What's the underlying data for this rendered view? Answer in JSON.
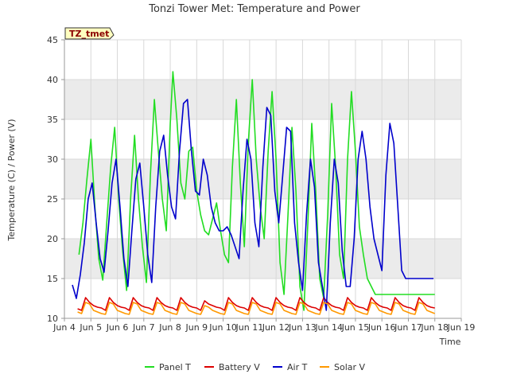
{
  "chart_data": {
    "type": "line",
    "title": "Tonzi Tower Met: Temperature and Power",
    "xlabel": "Time",
    "ylabel": "Temperature (C) / Power (V)",
    "badge": "TZ_tmet",
    "xlim": [
      4,
      19
    ],
    "ylim": [
      10,
      45
    ],
    "x_ticks": [
      4,
      5,
      6,
      7,
      8,
      9,
      10,
      11,
      12,
      13,
      14,
      15,
      16,
      17,
      18,
      19
    ],
    "x_tick_labels": [
      "Jun 4",
      "Jun 5",
      "Jun 6",
      "Jun 7",
      "Jun 8",
      "Jun 9",
      "Jun 10",
      "Jun 11",
      "Jun 12",
      "Jun 13",
      "Jun 14",
      "Jun 15",
      "Jun 16",
      "Jun 17",
      "Jun 18",
      "Jun 19"
    ],
    "y_ticks": [
      10,
      15,
      20,
      25,
      30,
      35,
      40,
      45
    ],
    "y_tick_labels": [
      "10",
      "15",
      "20",
      "25",
      "30",
      "35",
      "40",
      "45"
    ],
    "series": [
      {
        "name": "Panel T",
        "color": "#22dd22",
        "x": [
          4.55,
          4.7,
          4.85,
          5.0,
          5.15,
          5.3,
          5.45,
          5.6,
          5.75,
          5.9,
          6.05,
          6.2,
          6.35,
          6.5,
          6.65,
          6.8,
          6.95,
          7.1,
          7.25,
          7.4,
          7.55,
          7.7,
          7.85,
          8.0,
          8.1,
          8.25,
          8.4,
          8.55,
          8.7,
          8.85,
          9.0,
          9.15,
          9.3,
          9.45,
          9.6,
          9.75,
          9.9,
          10.05,
          10.2,
          10.35,
          10.5,
          10.65,
          10.8,
          10.95,
          11.1,
          11.25,
          11.4,
          11.55,
          11.7,
          11.85,
          12.0,
          12.15,
          12.3,
          12.45,
          12.6,
          12.75,
          12.9,
          13.05,
          13.2,
          13.35,
          13.5,
          13.65,
          13.8,
          13.95,
          14.1,
          14.25,
          14.4,
          14.55,
          14.7,
          14.85,
          15.0,
          15.15,
          15.3,
          15.45,
          15.6,
          15.75,
          15.9,
          16.05,
          16.2,
          16.35,
          16.5,
          16.65,
          16.8,
          16.95,
          17.1,
          17.25,
          17.4,
          17.55,
          17.7,
          17.85,
          18.0
        ],
        "y": [
          18.0,
          22.0,
          27.5,
          32.5,
          24.0,
          17.5,
          14.8,
          22.0,
          29.0,
          34.0,
          25.0,
          18.5,
          13.5,
          25.0,
          33.0,
          25.0,
          19.0,
          14.5,
          28.0,
          37.5,
          31.0,
          25.0,
          21.0,
          34.5,
          41.0,
          35.0,
          27.0,
          25.0,
          31.0,
          31.5,
          26.0,
          23.0,
          21.0,
          20.5,
          22.5,
          24.5,
          21.0,
          18.0,
          17.0,
          29.0,
          37.5,
          27.0,
          19.0,
          32.0,
          40.0,
          30.0,
          24.0,
          20.0,
          31.0,
          38.5,
          30.0,
          17.0,
          13.0,
          23.0,
          34.0,
          26.0,
          14.0,
          11.0,
          22.0,
          34.5,
          26.0,
          15.0,
          12.5,
          23.0,
          37.0,
          29.0,
          18.0,
          15.0,
          30.0,
          38.5,
          31.0,
          21.5,
          18.0,
          15.0,
          14.0,
          13.0,
          13.0,
          13.0,
          13.0,
          13.0,
          13.0,
          13.0,
          13.0,
          13.0,
          13.0,
          13.0,
          13.0,
          13.0,
          13.0,
          13.0,
          13.0
        ]
      },
      {
        "name": "Battery V",
        "color": "#dd0000",
        "x": [
          4.5,
          4.65,
          4.8,
          4.95,
          5.1,
          5.25,
          5.4,
          5.55,
          5.7,
          5.85,
          6.0,
          6.15,
          6.3,
          6.45,
          6.6,
          6.75,
          6.9,
          7.05,
          7.2,
          7.35,
          7.5,
          7.65,
          7.8,
          7.95,
          8.1,
          8.25,
          8.4,
          8.55,
          8.7,
          8.85,
          9.0,
          9.15,
          9.3,
          9.45,
          9.6,
          9.75,
          9.9,
          10.05,
          10.2,
          10.35,
          10.5,
          10.65,
          10.8,
          10.95,
          11.1,
          11.25,
          11.4,
          11.55,
          11.7,
          11.85,
          12.0,
          12.15,
          12.3,
          12.45,
          12.6,
          12.75,
          12.9,
          13.05,
          13.2,
          13.35,
          13.5,
          13.65,
          13.8,
          13.95,
          14.1,
          14.25,
          14.4,
          14.55,
          14.7,
          14.85,
          15.0,
          15.15,
          15.3,
          15.45,
          15.6,
          15.75,
          15.9,
          16.05,
          16.2,
          16.35,
          16.5,
          16.65,
          16.8,
          16.95,
          17.1,
          17.25,
          17.4,
          17.55,
          17.7,
          17.85,
          18.0
        ],
        "y": [
          11.2,
          11.0,
          12.6,
          12.0,
          11.6,
          11.4,
          11.3,
          11.0,
          12.6,
          12.0,
          11.6,
          11.4,
          11.3,
          11.0,
          12.6,
          12.0,
          11.6,
          11.4,
          11.3,
          11.0,
          12.6,
          12.0,
          11.6,
          11.4,
          11.3,
          11.0,
          12.6,
          12.0,
          11.6,
          11.4,
          11.3,
          11.0,
          12.2,
          11.8,
          11.6,
          11.4,
          11.3,
          11.0,
          12.6,
          12.0,
          11.6,
          11.4,
          11.3,
          11.0,
          12.6,
          12.0,
          11.6,
          11.4,
          11.3,
          11.0,
          12.6,
          12.0,
          11.6,
          11.4,
          11.3,
          11.0,
          12.6,
          12.0,
          11.6,
          11.4,
          11.3,
          11.0,
          12.6,
          12.0,
          11.6,
          11.4,
          11.3,
          11.0,
          12.6,
          12.0,
          11.6,
          11.4,
          11.3,
          11.0,
          12.6,
          12.0,
          11.6,
          11.4,
          11.3,
          11.0,
          12.6,
          12.0,
          11.6,
          11.4,
          11.3,
          11.0,
          12.6,
          12.0,
          11.6,
          11.4,
          11.3
        ]
      },
      {
        "name": "Air T",
        "color": "#0000cc",
        "x": [
          4.3,
          4.45,
          4.6,
          4.75,
          4.9,
          5.05,
          5.2,
          5.35,
          5.5,
          5.65,
          5.8,
          5.95,
          6.1,
          6.25,
          6.4,
          6.55,
          6.7,
          6.85,
          7.0,
          7.15,
          7.3,
          7.45,
          7.6,
          7.75,
          7.9,
          8.05,
          8.2,
          8.35,
          8.5,
          8.65,
          8.8,
          8.95,
          9.1,
          9.25,
          9.4,
          9.55,
          9.7,
          9.85,
          10.0,
          10.15,
          10.3,
          10.45,
          10.6,
          10.75,
          10.9,
          11.05,
          11.2,
          11.35,
          11.5,
          11.65,
          11.8,
          11.95,
          12.1,
          12.25,
          12.4,
          12.55,
          12.7,
          12.85,
          13.0,
          13.15,
          13.3,
          13.45,
          13.6,
          13.75,
          13.9,
          14.05,
          14.2,
          14.35,
          14.5,
          14.65,
          14.8,
          14.95,
          15.1,
          15.25,
          15.4,
          15.55,
          15.7,
          15.85,
          16.0,
          16.15,
          16.3,
          16.45,
          16.6,
          16.75,
          16.9,
          17.05,
          17.2,
          17.35,
          17.5,
          17.65,
          17.8,
          17.95
        ],
        "y": [
          14.2,
          12.5,
          15.5,
          19.5,
          25.0,
          27.0,
          22.0,
          17.5,
          15.8,
          21.0,
          27.0,
          30.0,
          24.0,
          17.5,
          14.0,
          21.0,
          27.5,
          29.5,
          24.0,
          18.0,
          14.5,
          24.0,
          31.0,
          33.0,
          28.0,
          24.0,
          22.5,
          31.0,
          37.0,
          37.5,
          31.0,
          26.0,
          25.5,
          30.0,
          28.0,
          24.0,
          22.0,
          21.0,
          21.0,
          21.5,
          20.5,
          19.0,
          17.5,
          26.0,
          32.5,
          30.0,
          22.0,
          19.0,
          29.0,
          36.5,
          35.5,
          26.0,
          22.0,
          28.0,
          34.0,
          33.5,
          22.0,
          17.0,
          13.5,
          23.0,
          30.0,
          26.5,
          17.0,
          14.0,
          11.0,
          22.0,
          30.0,
          27.0,
          18.5,
          14.0,
          14.0,
          20.0,
          30.0,
          33.5,
          30.0,
          24.0,
          20.0,
          18.0,
          16.0,
          28.0,
          34.5,
          32.0,
          24.0,
          16.0,
          15.0,
          15.0,
          15.0,
          15.0,
          15.0,
          15.0,
          15.0,
          15.0
        ]
      },
      {
        "name": "Solar V",
        "color": "#ff9900",
        "x": [
          4.5,
          4.65,
          4.8,
          4.95,
          5.1,
          5.25,
          5.4,
          5.55,
          5.7,
          5.85,
          6.0,
          6.15,
          6.3,
          6.45,
          6.6,
          6.75,
          6.9,
          7.05,
          7.2,
          7.35,
          7.5,
          7.65,
          7.8,
          7.95,
          8.1,
          8.25,
          8.4,
          8.55,
          8.7,
          8.85,
          9.0,
          9.15,
          9.3,
          9.45,
          9.6,
          9.75,
          9.9,
          10.05,
          10.2,
          10.35,
          10.5,
          10.65,
          10.8,
          10.95,
          11.1,
          11.25,
          11.4,
          11.55,
          11.7,
          11.85,
          12.0,
          12.15,
          12.3,
          12.45,
          12.6,
          12.75,
          12.9,
          13.05,
          13.2,
          13.35,
          13.5,
          13.65,
          13.8,
          13.95,
          14.1,
          14.25,
          14.4,
          14.55,
          14.7,
          14.85,
          15.0,
          15.15,
          15.3,
          15.45,
          15.6,
          15.75,
          15.9,
          16.05,
          16.2,
          16.35,
          16.5,
          16.65,
          16.8,
          16.95,
          17.1,
          17.25,
          17.4,
          17.55,
          17.7,
          17.85,
          18.0
        ],
        "y": [
          10.8,
          10.6,
          12.0,
          11.8,
          11.0,
          10.8,
          10.6,
          10.5,
          12.0,
          11.8,
          11.0,
          10.8,
          10.6,
          10.5,
          12.0,
          11.8,
          11.0,
          10.8,
          10.6,
          10.5,
          12.0,
          11.8,
          11.0,
          10.8,
          10.6,
          10.5,
          12.0,
          11.8,
          11.0,
          10.8,
          10.6,
          10.5,
          11.6,
          11.4,
          11.0,
          10.8,
          10.6,
          10.5,
          12.0,
          11.8,
          11.0,
          10.8,
          10.6,
          10.5,
          12.0,
          11.8,
          11.0,
          10.8,
          10.6,
          10.5,
          12.0,
          11.8,
          11.0,
          10.8,
          10.6,
          10.5,
          12.0,
          11.8,
          11.0,
          10.8,
          10.6,
          10.5,
          12.0,
          11.8,
          11.0,
          10.8,
          10.6,
          10.5,
          12.0,
          11.8,
          11.0,
          10.8,
          10.6,
          10.5,
          12.0,
          11.8,
          11.0,
          10.8,
          10.6,
          10.5,
          12.0,
          11.8,
          11.0,
          10.8,
          10.6,
          10.5,
          12.0,
          11.8,
          11.0,
          10.8,
          10.6
        ]
      }
    ],
    "legend_position": "bottom"
  },
  "colors": {
    "band_fill": "#ebebeb",
    "grid": "#d8d8d8",
    "axis": "#999999"
  }
}
